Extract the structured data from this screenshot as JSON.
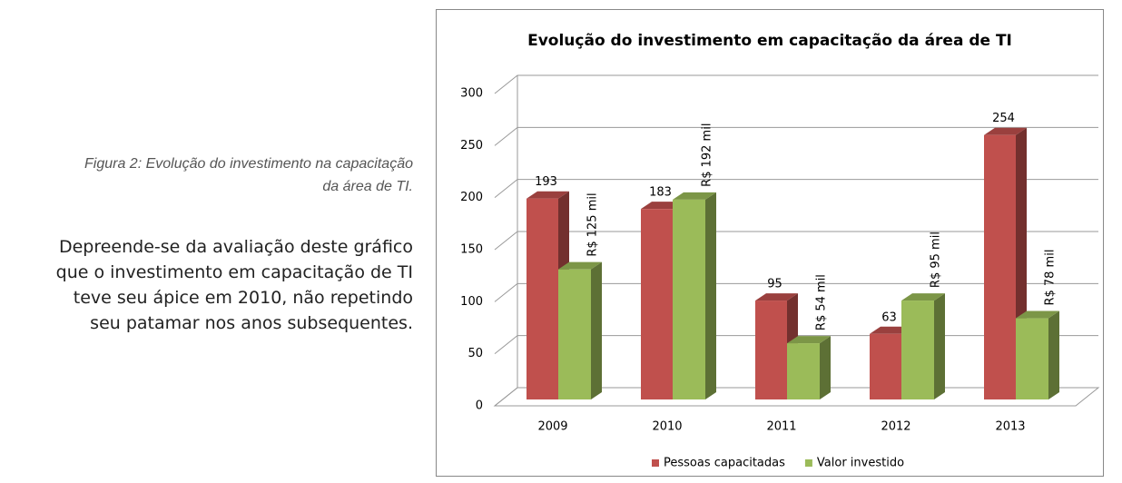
{
  "caption_lines": [
    "Figura 2: Evolução do investimento na capacitação",
    "da área de TI."
  ],
  "paragraph_lines": [
    "Depreende-se da avaliação deste gráfico",
    "que o investimento em capacitação de TI",
    "teve seu ápice em 2010, não repetindo",
    "seu patamar nos anos subsequentes."
  ],
  "chart_data": {
    "type": "bar",
    "title": "Evolução do investimento em capacitação da área de TI",
    "categories": [
      "2009",
      "2010",
      "2011",
      "2012",
      "2013"
    ],
    "series": [
      {
        "name": "Pessoas capacitadas",
        "color": "#c0504d",
        "values": [
          193,
          183,
          95,
          63,
          254
        ]
      },
      {
        "name": "Valor investido",
        "color": "#9bbb59",
        "values": [
          125,
          192,
          54,
          95,
          78
        ],
        "value_labels": [
          "R$ 125 mil",
          "R$ 192 mil",
          "R$ 54 mil",
          "R$ 95 mil",
          "R$ 78 mil"
        ]
      }
    ],
    "ylim": [
      0,
      300
    ],
    "yticks": [
      0,
      50,
      100,
      150,
      200,
      250,
      300
    ],
    "grid": true,
    "legend": "bottom"
  }
}
